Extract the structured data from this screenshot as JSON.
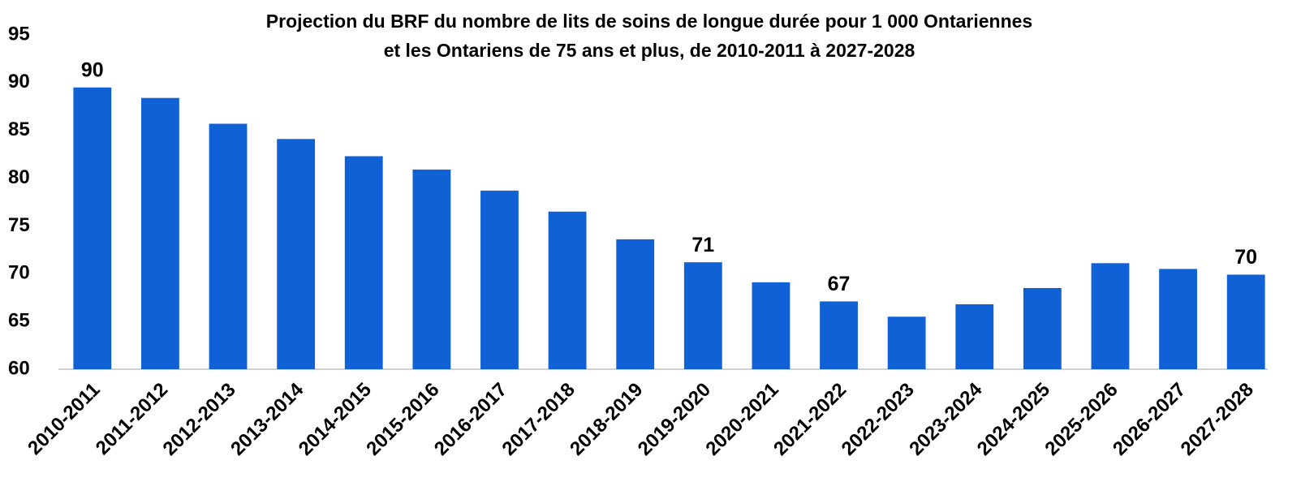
{
  "chart_data": {
    "type": "bar",
    "title": [
      "Projection du BRF du nombre de lits de soins de longue durée pour 1 000 Ontariennes",
      "et les Ontariens de 75 ans et plus, de 2010-2011 à 2027-2028"
    ],
    "categories": [
      "2010-2011",
      "2011-2012",
      "2012-2013",
      "2013-2014",
      "2014-2015",
      "2015-2016",
      "2016-2017",
      "2017-2018",
      "2018-2019",
      "2019-2020",
      "2020-2021",
      "2021-2022",
      "2022-2023",
      "2023-2024",
      "2024-2025",
      "2025-2026",
      "2026-2027",
      "2027-2028"
    ],
    "values": [
      89.5,
      88.4,
      85.7,
      84.1,
      82.3,
      80.9,
      78.7,
      76.5,
      73.6,
      71.2,
      69.1,
      67.1,
      65.5,
      66.8,
      68.5,
      71.1,
      70.5,
      69.9
    ],
    "value_labels": [
      "90",
      null,
      null,
      null,
      null,
      null,
      null,
      null,
      null,
      "71",
      null,
      "67",
      null,
      null,
      null,
      null,
      null,
      "70"
    ],
    "color": "#1061d6",
    "ylim": [
      60,
      95
    ],
    "yticks": [
      60,
      65,
      70,
      75,
      80,
      85,
      90,
      95
    ],
    "grid": false
  }
}
